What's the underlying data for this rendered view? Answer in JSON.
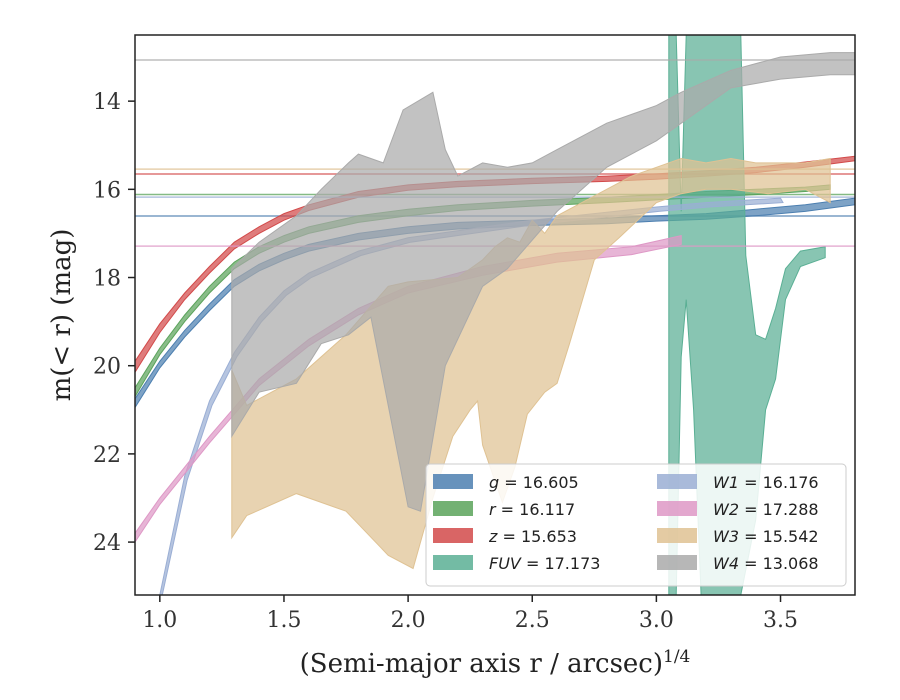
{
  "chart_data": {
    "type": "line",
    "title": "",
    "xlabel": "(Semi-major axis r / arcsec)",
    "xlabel_superscript": "1/4",
    "ylabel": "m(< r) (mag)",
    "xlim": [
      0.9,
      3.8
    ],
    "ylim": [
      25.2,
      12.5
    ],
    "y_inverted": true,
    "grid": false,
    "legend_position": "lower-right",
    "x_ticks": [
      1.0,
      1.5,
      2.0,
      2.5,
      3.0,
      3.5
    ],
    "x_tick_labels": [
      "1.0",
      "1.5",
      "2.0",
      "2.5",
      "3.0",
      "3.5"
    ],
    "y_ticks": [
      14,
      16,
      18,
      20,
      22,
      24
    ],
    "y_tick_labels": [
      "14",
      "16",
      "18",
      "20",
      "22",
      "24"
    ],
    "series": [
      {
        "name": "g = 16.605",
        "label_var": "g",
        "label_val": "16.605",
        "color": "#4c7fb0",
        "asymptote": 16.605,
        "upper": [
          [
            0.9,
            20.75
          ],
          [
            1.0,
            19.9
          ],
          [
            1.1,
            19.2
          ],
          [
            1.2,
            18.6
          ],
          [
            1.3,
            18.05
          ],
          [
            1.4,
            17.7
          ],
          [
            1.5,
            17.45
          ],
          [
            1.6,
            17.25
          ],
          [
            1.8,
            17.0
          ],
          [
            2.0,
            16.85
          ],
          [
            2.2,
            16.75
          ],
          [
            2.5,
            16.7
          ],
          [
            2.8,
            16.65
          ],
          [
            3.0,
            16.6
          ],
          [
            3.2,
            16.55
          ],
          [
            3.4,
            16.45
          ],
          [
            3.6,
            16.35
          ],
          [
            3.8,
            16.2
          ]
        ],
        "lower": [
          [
            0.9,
            20.95
          ],
          [
            1.0,
            20.05
          ],
          [
            1.1,
            19.35
          ],
          [
            1.2,
            18.75
          ],
          [
            1.3,
            18.2
          ],
          [
            1.4,
            17.85
          ],
          [
            1.5,
            17.6
          ],
          [
            1.6,
            17.4
          ],
          [
            1.8,
            17.15
          ],
          [
            2.0,
            17.0
          ],
          [
            2.2,
            16.9
          ],
          [
            2.5,
            16.82
          ],
          [
            2.8,
            16.78
          ],
          [
            3.0,
            16.72
          ],
          [
            3.2,
            16.68
          ],
          [
            3.4,
            16.6
          ],
          [
            3.6,
            16.5
          ],
          [
            3.8,
            16.35
          ]
        ]
      },
      {
        "name": "r = 16.117",
        "label_var": "r",
        "label_val": "16.117",
        "color": "#5ba35b",
        "asymptote": 16.117,
        "upper": [
          [
            0.9,
            20.5
          ],
          [
            1.0,
            19.6
          ],
          [
            1.1,
            18.85
          ],
          [
            1.2,
            18.2
          ],
          [
            1.3,
            17.65
          ],
          [
            1.4,
            17.3
          ],
          [
            1.5,
            17.05
          ],
          [
            1.6,
            16.85
          ],
          [
            1.8,
            16.6
          ],
          [
            2.0,
            16.45
          ],
          [
            2.2,
            16.35
          ],
          [
            2.5,
            16.25
          ],
          [
            2.8,
            16.18
          ],
          [
            3.0,
            16.12
          ],
          [
            3.2,
            16.05
          ],
          [
            3.4,
            16.0
          ],
          [
            3.6,
            15.95
          ],
          [
            3.7,
            15.9
          ]
        ],
        "lower": [
          [
            0.9,
            20.7
          ],
          [
            1.0,
            19.75
          ],
          [
            1.1,
            19.0
          ],
          [
            1.2,
            18.35
          ],
          [
            1.3,
            17.8
          ],
          [
            1.4,
            17.45
          ],
          [
            1.5,
            17.2
          ],
          [
            1.6,
            17.0
          ],
          [
            1.8,
            16.75
          ],
          [
            2.0,
            16.6
          ],
          [
            2.2,
            16.48
          ],
          [
            2.5,
            16.38
          ],
          [
            2.8,
            16.3
          ],
          [
            3.0,
            16.24
          ],
          [
            3.2,
            16.18
          ],
          [
            3.4,
            16.12
          ],
          [
            3.6,
            16.05
          ],
          [
            3.7,
            16.0
          ]
        ]
      },
      {
        "name": "z = 15.653",
        "label_var": "z",
        "label_val": "15.653",
        "color": "#d24a4a",
        "asymptote": 15.653,
        "upper": [
          [
            0.9,
            19.9
          ],
          [
            1.0,
            19.05
          ],
          [
            1.1,
            18.35
          ],
          [
            1.2,
            17.75
          ],
          [
            1.3,
            17.2
          ],
          [
            1.4,
            16.85
          ],
          [
            1.5,
            16.55
          ],
          [
            1.6,
            16.35
          ],
          [
            1.8,
            16.05
          ],
          [
            2.0,
            15.9
          ],
          [
            2.2,
            15.82
          ],
          [
            2.5,
            15.75
          ],
          [
            2.8,
            15.7
          ],
          [
            3.0,
            15.65
          ],
          [
            3.2,
            15.58
          ],
          [
            3.4,
            15.5
          ],
          [
            3.6,
            15.38
          ],
          [
            3.8,
            15.25
          ]
        ],
        "lower": [
          [
            0.9,
            20.15
          ],
          [
            1.0,
            19.25
          ],
          [
            1.1,
            18.5
          ],
          [
            1.2,
            17.9
          ],
          [
            1.3,
            17.35
          ],
          [
            1.4,
            17.0
          ],
          [
            1.5,
            16.7
          ],
          [
            1.6,
            16.48
          ],
          [
            1.8,
            16.18
          ],
          [
            2.0,
            16.02
          ],
          [
            2.2,
            15.94
          ],
          [
            2.5,
            15.87
          ],
          [
            2.8,
            15.82
          ],
          [
            3.0,
            15.77
          ],
          [
            3.2,
            15.7
          ],
          [
            3.4,
            15.62
          ],
          [
            3.6,
            15.5
          ],
          [
            3.8,
            15.35
          ]
        ]
      },
      {
        "name": "FUV = 17.173",
        "label_var": "FUV",
        "label_val": "17.173",
        "color": "#5aaf94",
        "asymptote": null,
        "upper": [
          [
            3.05,
            12.5
          ],
          [
            3.08,
            12.5
          ],
          [
            3.1,
            16.5
          ],
          [
            3.12,
            12.5
          ],
          [
            3.34,
            12.5
          ],
          [
            3.36,
            17.5
          ],
          [
            3.4,
            19.3
          ],
          [
            3.44,
            19.4
          ],
          [
            3.48,
            18.7
          ],
          [
            3.52,
            17.8
          ],
          [
            3.58,
            17.4
          ],
          [
            3.68,
            17.3
          ]
        ],
        "lower": [
          [
            3.05,
            25.2
          ],
          [
            3.08,
            25.2
          ],
          [
            3.1,
            19.8
          ],
          [
            3.12,
            18.5
          ],
          [
            3.15,
            21.0
          ],
          [
            3.18,
            25.2
          ],
          [
            3.34,
            25.2
          ],
          [
            3.4,
            23.5
          ],
          [
            3.44,
            21.0
          ],
          [
            3.48,
            20.3
          ],
          [
            3.52,
            18.5
          ],
          [
            3.58,
            17.75
          ],
          [
            3.68,
            17.55
          ]
        ]
      },
      {
        "name": "W1 = 16.176",
        "label_var": "W1",
        "label_val": "16.176",
        "color": "#9aaed4",
        "asymptote": 16.176,
        "upper": [
          [
            1.0,
            25.2
          ],
          [
            1.1,
            22.5
          ],
          [
            1.2,
            20.8
          ],
          [
            1.3,
            19.7
          ],
          [
            1.4,
            18.9
          ],
          [
            1.5,
            18.3
          ],
          [
            1.6,
            17.9
          ],
          [
            1.8,
            17.4
          ],
          [
            2.0,
            17.1
          ],
          [
            2.5,
            16.7
          ],
          [
            3.0,
            16.4
          ],
          [
            3.2,
            16.3
          ],
          [
            3.5,
            16.2
          ]
        ],
        "lower": [
          [
            1.01,
            25.2
          ],
          [
            1.11,
            22.6
          ],
          [
            1.21,
            20.9
          ],
          [
            1.31,
            19.8
          ],
          [
            1.41,
            19.0
          ],
          [
            1.51,
            18.4
          ],
          [
            1.61,
            18.0
          ],
          [
            1.81,
            17.5
          ],
          [
            2.01,
            17.2
          ],
          [
            2.51,
            16.8
          ],
          [
            3.01,
            16.5
          ],
          [
            3.21,
            16.4
          ],
          [
            3.51,
            16.3
          ]
        ]
      },
      {
        "name": "W2 = 17.288",
        "label_var": "W2",
        "label_val": "17.288",
        "color": "#de98c6",
        "asymptote": 17.288,
        "upper": [
          [
            0.9,
            23.8
          ],
          [
            1.0,
            23.0
          ],
          [
            1.2,
            21.6
          ],
          [
            1.4,
            20.3
          ],
          [
            1.6,
            19.4
          ],
          [
            1.8,
            18.7
          ],
          [
            2.0,
            18.2
          ],
          [
            2.3,
            17.75
          ],
          [
            2.6,
            17.45
          ],
          [
            2.9,
            17.3
          ],
          [
            3.1,
            17.05
          ]
        ],
        "lower": [
          [
            0.9,
            24.0
          ],
          [
            1.0,
            23.15
          ],
          [
            1.2,
            21.75
          ],
          [
            1.4,
            20.45
          ],
          [
            1.6,
            19.55
          ],
          [
            1.8,
            18.85
          ],
          [
            2.0,
            18.35
          ],
          [
            2.3,
            17.95
          ],
          [
            2.6,
            17.65
          ],
          [
            2.9,
            17.48
          ],
          [
            3.1,
            17.25
          ]
        ]
      },
      {
        "name": "W3 = 15.542",
        "label_var": "W3",
        "label_val": "15.542",
        "color": "#dfc293",
        "asymptote": 15.542,
        "upper": [
          [
            1.29,
            20.1
          ],
          [
            1.35,
            20.9
          ],
          [
            1.55,
            20.3
          ],
          [
            1.75,
            19.3
          ],
          [
            1.92,
            18.2
          ],
          [
            2.0,
            18.1
          ],
          [
            2.2,
            18.0
          ],
          [
            2.3,
            17.6
          ],
          [
            2.35,
            17.3
          ],
          [
            2.4,
            17.1
          ],
          [
            2.45,
            17.2
          ],
          [
            2.5,
            16.7
          ],
          [
            2.55,
            17.0
          ],
          [
            2.6,
            16.6
          ],
          [
            2.7,
            16.3
          ],
          [
            2.8,
            16.0
          ],
          [
            2.9,
            15.7
          ],
          [
            3.0,
            15.5
          ],
          [
            3.1,
            15.3
          ],
          [
            3.2,
            15.4
          ],
          [
            3.3,
            15.3
          ],
          [
            3.4,
            15.4
          ],
          [
            3.6,
            15.4
          ],
          [
            3.7,
            15.3
          ]
        ],
        "lower": [
          [
            1.29,
            23.9
          ],
          [
            1.35,
            23.4
          ],
          [
            1.55,
            22.9
          ],
          [
            1.75,
            23.3
          ],
          [
            1.92,
            24.3
          ],
          [
            2.02,
            24.6
          ],
          [
            2.1,
            23.0
          ],
          [
            2.18,
            21.6
          ],
          [
            2.25,
            21.0
          ],
          [
            2.28,
            20.8
          ],
          [
            2.3,
            21.8
          ],
          [
            2.38,
            23.1
          ],
          [
            2.43,
            22.3
          ],
          [
            2.48,
            21.1
          ],
          [
            2.55,
            20.6
          ],
          [
            2.6,
            20.4
          ],
          [
            2.65,
            19.5
          ],
          [
            2.75,
            17.6
          ],
          [
            2.85,
            17.1
          ],
          [
            3.0,
            16.3
          ],
          [
            3.1,
            16.1
          ],
          [
            3.2,
            16.0
          ],
          [
            3.3,
            16.0
          ],
          [
            3.45,
            16.1
          ],
          [
            3.6,
            16.0
          ],
          [
            3.7,
            16.3
          ]
        ]
      },
      {
        "name": "W4 = 13.068",
        "label_var": "W4",
        "label_val": "13.068",
        "color": "#aaaaaa",
        "asymptote": 13.068,
        "upper": [
          [
            1.29,
            17.8
          ],
          [
            1.4,
            17.2
          ],
          [
            1.55,
            16.6
          ],
          [
            1.65,
            16.0
          ],
          [
            1.76,
            15.4
          ],
          [
            1.8,
            15.2
          ],
          [
            1.9,
            15.4
          ],
          [
            1.98,
            14.2
          ],
          [
            2.1,
            13.8
          ],
          [
            2.15,
            15.1
          ],
          [
            2.2,
            15.7
          ],
          [
            2.3,
            15.4
          ],
          [
            2.4,
            15.5
          ],
          [
            2.5,
            15.4
          ],
          [
            2.6,
            15.1
          ],
          [
            2.8,
            14.5
          ],
          [
            3.0,
            14.1
          ],
          [
            3.1,
            13.8
          ],
          [
            3.3,
            13.3
          ],
          [
            3.5,
            13.0
          ],
          [
            3.7,
            12.9
          ],
          [
            3.8,
            12.9
          ]
        ],
        "lower": [
          [
            1.29,
            21.6
          ],
          [
            1.4,
            20.6
          ],
          [
            1.55,
            20.4
          ],
          [
            1.65,
            19.5
          ],
          [
            1.76,
            19.3
          ],
          [
            1.85,
            18.9
          ],
          [
            2.0,
            23.2
          ],
          [
            2.05,
            23.3
          ],
          [
            2.15,
            20.0
          ],
          [
            2.3,
            18.2
          ],
          [
            2.4,
            17.8
          ],
          [
            2.6,
            16.5
          ],
          [
            2.8,
            15.5
          ],
          [
            3.0,
            14.9
          ],
          [
            3.1,
            14.5
          ],
          [
            3.3,
            13.7
          ],
          [
            3.5,
            13.5
          ],
          [
            3.7,
            13.4
          ],
          [
            3.8,
            13.4
          ]
        ]
      }
    ]
  }
}
